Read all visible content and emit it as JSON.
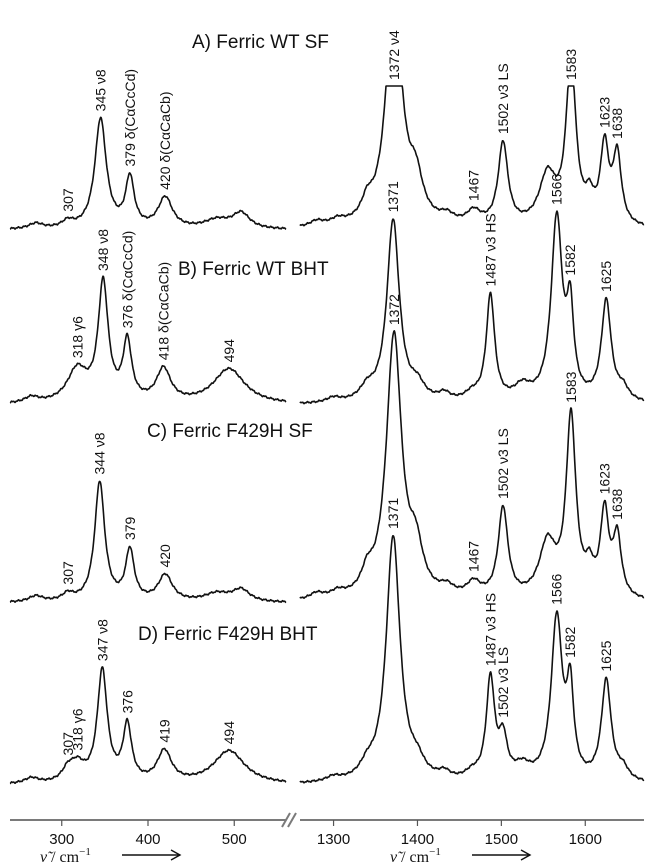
{
  "chart_data": {
    "type": "line",
    "panels": [
      {
        "x": [
          300,
          400,
          500
        ],
        "xlabel_var": "ν̃",
        "xlabel_unit": " / cm",
        "xlabel_exp": "−1",
        "xlim": [
          240,
          560
        ]
      },
      {
        "x": [
          1300,
          1400,
          1500,
          1600
        ],
        "xlabel_var": "ν̃",
        "xlabel_unit": " / cm",
        "xlabel_exp": "−1",
        "xlim": [
          1260,
          1670
        ]
      }
    ],
    "series": [
      {
        "title": "A) Ferric WT SF",
        "low_peaks": [
          [
            270,
            0.05,
            10
          ],
          [
            307,
            0.06,
            8
          ],
          [
            345,
            1.0,
            8
          ],
          [
            379,
            0.45,
            6
          ],
          [
            420,
            0.28,
            10
          ],
          [
            480,
            0.08,
            18
          ],
          [
            508,
            0.14,
            12
          ]
        ],
        "high_peaks": [
          [
            1280,
            0.05,
            10
          ],
          [
            1305,
            0.05,
            10
          ],
          [
            1340,
            0.15,
            8
          ],
          [
            1372,
            2.2,
            11
          ],
          [
            1398,
            0.35,
            10
          ],
          [
            1435,
            0.07,
            10
          ],
          [
            1467,
            0.12,
            10
          ],
          [
            1502,
            0.75,
            7
          ],
          [
            1555,
            0.45,
            12
          ],
          [
            1583,
            1.5,
            7
          ],
          [
            1605,
            0.2,
            6
          ],
          [
            1623,
            0.7,
            6
          ],
          [
            1638,
            0.63,
            6
          ]
        ],
        "clip_high": true,
        "labels_low": [
          {
            "text": "307",
            "x": 307
          },
          {
            "text": "345 ν8",
            "x": 345
          },
          {
            "text": "379 δ(CαCcCd)",
            "x": 379
          },
          {
            "text": "420 δ(CαCaCb)",
            "x": 420
          }
        ],
        "labels_high": [
          {
            "text": "1372 ν4",
            "x": 1372
          },
          {
            "text": "1467",
            "x": 1467
          },
          {
            "text": "1502 ν3 LS",
            "x": 1502
          },
          {
            "text": "1583",
            "x": 1583
          },
          {
            "text": "1623",
            "x": 1623
          },
          {
            "text": "1638",
            "x": 1638
          }
        ]
      },
      {
        "title": "B) Ferric WT BHT",
        "low_peaks": [
          [
            265,
            0.05,
            10
          ],
          [
            318,
            0.28,
            14
          ],
          [
            348,
            1.0,
            7
          ],
          [
            376,
            0.5,
            6
          ],
          [
            418,
            0.28,
            10
          ],
          [
            494,
            0.3,
            22
          ]
        ],
        "high_peaks": [
          [
            1300,
            0.04,
            10
          ],
          [
            1340,
            0.1,
            10
          ],
          [
            1371,
            1.55,
            9
          ],
          [
            1400,
            0.12,
            10
          ],
          [
            1432,
            0.06,
            8
          ],
          [
            1465,
            0.06,
            10
          ],
          [
            1487,
            0.9,
            6
          ],
          [
            1525,
            0.12,
            12
          ],
          [
            1566,
            1.55,
            8
          ],
          [
            1582,
            0.7,
            5
          ],
          [
            1625,
            0.85,
            7
          ],
          [
            1645,
            0.1,
            8
          ]
        ],
        "clip_high": false,
        "labels_low": [
          {
            "text": "318 γ6",
            "x": 318
          },
          {
            "text": "348 ν8",
            "x": 348
          },
          {
            "text": "376 δ(CαCcCd)",
            "x": 376
          },
          {
            "text": "418 δ(CαCaCb)",
            "x": 418
          },
          {
            "text": "494",
            "x": 494
          }
        ],
        "labels_high": [
          {
            "text": "1371",
            "x": 1371
          },
          {
            "text": "1487 ν3 HS",
            "x": 1487
          },
          {
            "text": "1566",
            "x": 1566
          },
          {
            "text": "1582",
            "x": 1582
          },
          {
            "text": "1625",
            "x": 1625
          }
        ]
      },
      {
        "title": "C) Ferric F429H SF",
        "low_peaks": [
          [
            270,
            0.05,
            10
          ],
          [
            307,
            0.06,
            8
          ],
          [
            344,
            1.0,
            7
          ],
          [
            379,
            0.42,
            6
          ],
          [
            420,
            0.22,
            10
          ],
          [
            480,
            0.07,
            18
          ],
          [
            508,
            0.1,
            12
          ]
        ],
        "high_peaks": [
          [
            1280,
            0.05,
            10
          ],
          [
            1305,
            0.05,
            10
          ],
          [
            1340,
            0.15,
            8
          ],
          [
            1372,
            2.2,
            11
          ],
          [
            1398,
            0.35,
            10
          ],
          [
            1435,
            0.07,
            10
          ],
          [
            1467,
            0.12,
            10
          ],
          [
            1502,
            0.75,
            7
          ],
          [
            1555,
            0.45,
            12
          ],
          [
            1583,
            1.5,
            7
          ],
          [
            1605,
            0.2,
            6
          ],
          [
            1623,
            0.7,
            6
          ],
          [
            1638,
            0.5,
            6
          ]
        ],
        "clip_high": true,
        "labels_low": [
          {
            "text": "307",
            "x": 307
          },
          {
            "text": "344 ν8",
            "x": 344
          },
          {
            "text": "379",
            "x": 379
          },
          {
            "text": "420",
            "x": 420
          }
        ],
        "labels_high": [
          {
            "text": "1372",
            "x": 1372
          },
          {
            "text": "1467",
            "x": 1467
          },
          {
            "text": "1502 ν3 LS",
            "x": 1502
          },
          {
            "text": "1583",
            "x": 1583
          },
          {
            "text": "1623",
            "x": 1623
          },
          {
            "text": "1638",
            "x": 1638
          }
        ]
      },
      {
        "title": "D) Ferric F429H BHT",
        "low_peaks": [
          [
            265,
            0.05,
            10
          ],
          [
            307,
            0.1,
            8
          ],
          [
            318,
            0.15,
            10
          ],
          [
            347,
            1.0,
            7
          ],
          [
            376,
            0.5,
            6
          ],
          [
            419,
            0.28,
            10
          ],
          [
            494,
            0.3,
            22
          ]
        ],
        "high_peaks": [
          [
            1300,
            0.04,
            10
          ],
          [
            1340,
            0.1,
            10
          ],
          [
            1371,
            2.2,
            10
          ],
          [
            1400,
            0.12,
            10
          ],
          [
            1432,
            0.06,
            8
          ],
          [
            1465,
            0.06,
            10
          ],
          [
            1487,
            0.9,
            6
          ],
          [
            1502,
            0.35,
            6
          ],
          [
            1525,
            0.12,
            12
          ],
          [
            1566,
            1.45,
            8
          ],
          [
            1582,
            0.75,
            5
          ],
          [
            1625,
            0.9,
            7
          ],
          [
            1645,
            0.1,
            8
          ]
        ],
        "clip_high": true,
        "labels_low": [
          {
            "text": "307",
            "x": 307
          },
          {
            "text": "318 γ6",
            "x": 318
          },
          {
            "text": "347 ν8",
            "x": 347
          },
          {
            "text": "376",
            "x": 376
          },
          {
            "text": "419",
            "x": 419
          },
          {
            "text": "494",
            "x": 494
          }
        ],
        "labels_high": [
          {
            "text": "1371",
            "x": 1371
          },
          {
            "text": "1487 ν3 HS",
            "x": 1487
          },
          {
            "text": "1502 ν3 LS",
            "x": 1502
          },
          {
            "text": "1566",
            "x": 1566
          },
          {
            "text": "1582",
            "x": 1582
          },
          {
            "text": "1625",
            "x": 1625
          }
        ]
      }
    ]
  }
}
